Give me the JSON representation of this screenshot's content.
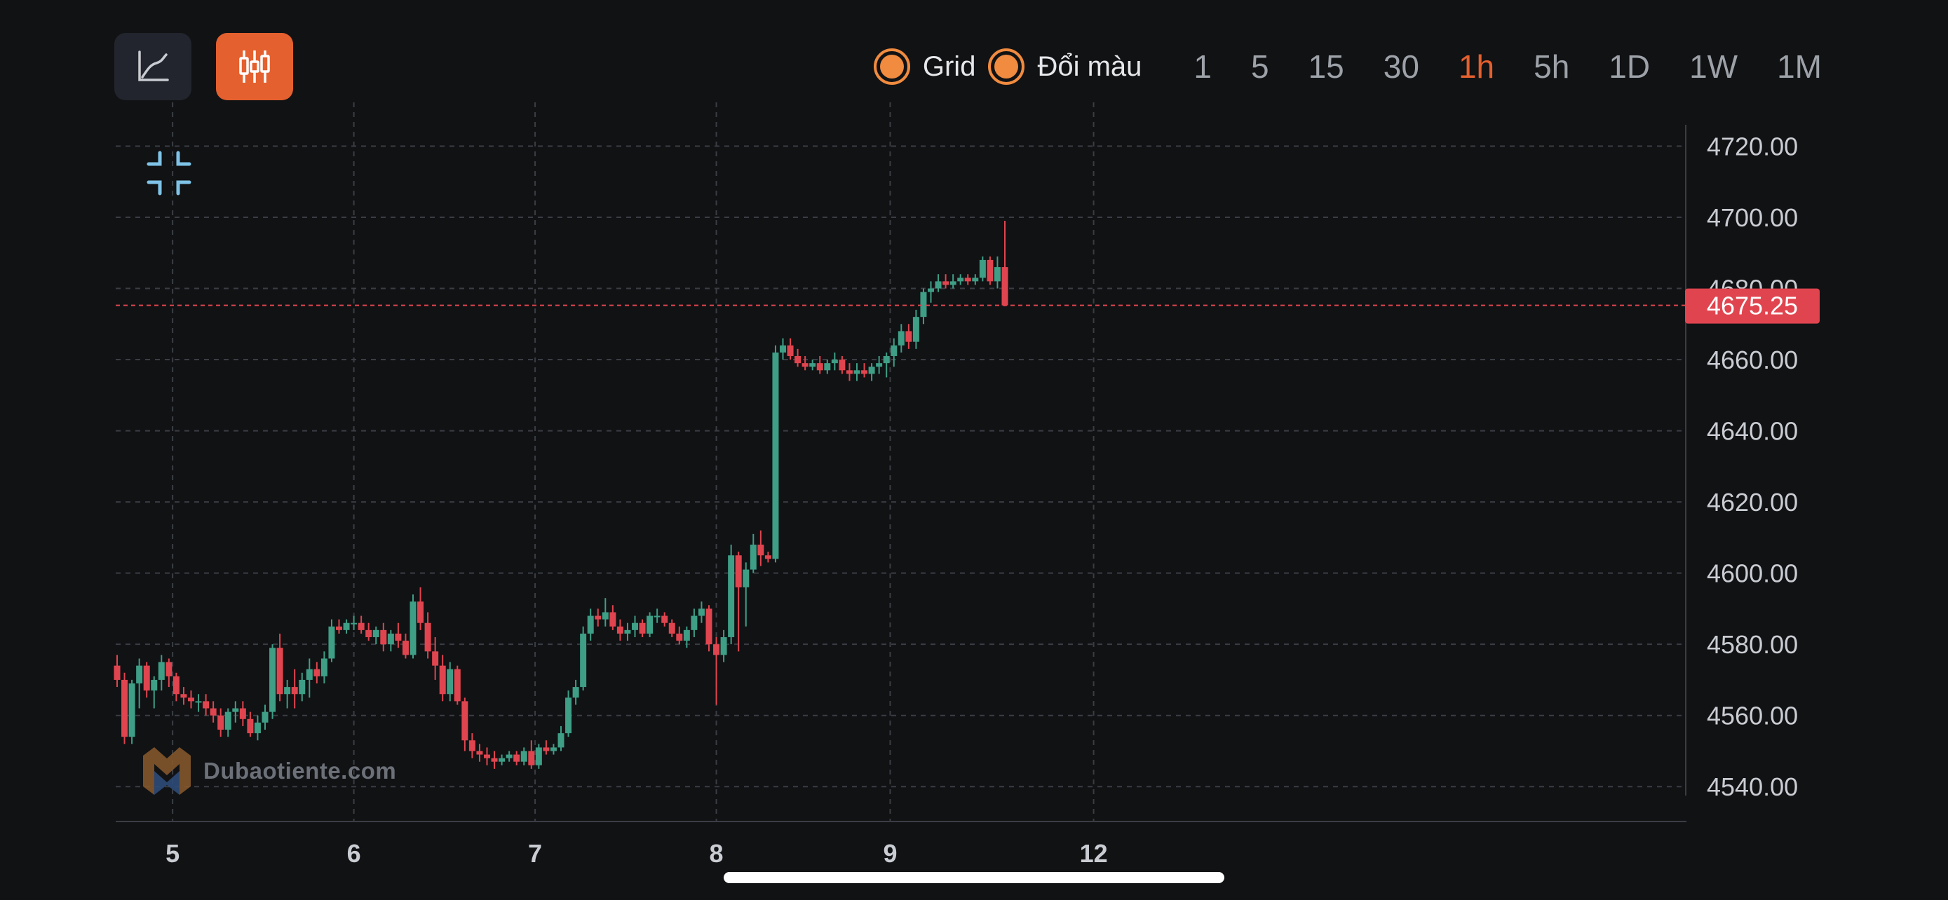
{
  "toolbar": {
    "line_mode_icon": "line-chart-icon",
    "candle_mode_icon": "candlestick-icon",
    "grid_label": "Grid",
    "color_label": "Đổi màu",
    "timeframes": [
      "1",
      "5",
      "15",
      "30",
      "1h",
      "5h",
      "1D",
      "1W",
      "1M"
    ],
    "active_timeframe": "1h"
  },
  "watermark": {
    "text": "Dubaotiente.com"
  },
  "colors": {
    "up": "#3e9e86",
    "down": "#e0454f",
    "accent": "#e4602e",
    "grid": "#3a3d44",
    "price_line": "#e0454f",
    "price_badge": "#e0454f",
    "background": "#111214"
  },
  "chart_data": {
    "type": "candlestick",
    "grid": true,
    "x_tick_labels": [
      {
        "label": "5",
        "index": 7.5
      },
      {
        "label": "6",
        "index": 32
      },
      {
        "label": "7",
        "index": 56.5
      },
      {
        "label": "8",
        "index": 81
      },
      {
        "label": "9",
        "index": 104.5
      },
      {
        "label": "12",
        "index": 132
      }
    ],
    "y_tick_labels": [
      "4720.00",
      "4700.00",
      "4680.00",
      "4660.00",
      "4640.00",
      "4620.00",
      "4600.00",
      "4580.00",
      "4560.00",
      "4540.00"
    ],
    "y_ticks": [
      4720,
      4700,
      4680,
      4660,
      4640,
      4620,
      4600,
      4580,
      4560,
      4540
    ],
    "ylim": [
      4536.5,
      4726
    ],
    "last_price": 4675.25,
    "last_price_label": "4675.25",
    "candles": [
      [
        4574,
        4577,
        4568,
        4570
      ],
      [
        4570,
        4572,
        4552,
        4554
      ],
      [
        4554,
        4570,
        4552,
        4569
      ],
      [
        4569,
        4576,
        4562,
        4574
      ],
      [
        4574,
        4575,
        4565,
        4567
      ],
      [
        4567,
        4571,
        4562,
        4570
      ],
      [
        4570,
        4577,
        4567,
        4575
      ],
      [
        4575,
        4576,
        4568,
        4571
      ],
      [
        4571,
        4572,
        4564,
        4566
      ],
      [
        4566,
        4568,
        4563,
        4565
      ],
      [
        4565,
        4567,
        4562,
        4564
      ],
      [
        4564,
        4566,
        4561,
        4564
      ],
      [
        4564,
        4566,
        4560,
        4562
      ],
      [
        4562,
        4564,
        4558,
        4560
      ],
      [
        4560,
        4562,
        4554,
        4556
      ],
      [
        4556,
        4562,
        4554,
        4561
      ],
      [
        4561,
        4564,
        4558,
        4562
      ],
      [
        4562,
        4564,
        4557,
        4559
      ],
      [
        4559,
        4561,
        4554,
        4555
      ],
      [
        4555,
        4560,
        4553,
        4558
      ],
      [
        4558,
        4563,
        4556,
        4561
      ],
      [
        4561,
        4580,
        4559,
        4579
      ],
      [
        4579,
        4583,
        4564,
        4566
      ],
      [
        4566,
        4570,
        4562,
        4568
      ],
      [
        4568,
        4573,
        4562,
        4566
      ],
      [
        4566,
        4572,
        4564,
        4570
      ],
      [
        4570,
        4576,
        4565,
        4573
      ],
      [
        4573,
        4575,
        4569,
        4571
      ],
      [
        4571,
        4578,
        4569,
        4576
      ],
      [
        4576,
        4587,
        4575,
        4585
      ],
      [
        4585,
        4587,
        4583,
        4584
      ],
      [
        4584,
        4587,
        4583,
        4586
      ],
      [
        4586,
        4588,
        4584,
        4586
      ],
      [
        4586,
        4588,
        4583,
        4584
      ],
      [
        4584,
        4586,
        4581,
        4582
      ],
      [
        4582,
        4585,
        4580,
        4584
      ],
      [
        4584,
        4586,
        4578,
        4580
      ],
      [
        4580,
        4584,
        4578,
        4583
      ],
      [
        4583,
        4586,
        4579,
        4581
      ],
      [
        4581,
        4583,
        4576,
        4577
      ],
      [
        4577,
        4594,
        4576,
        4592
      ],
      [
        4592,
        4596,
        4584,
        4586
      ],
      [
        4586,
        4589,
        4576,
        4578
      ],
      [
        4578,
        4582,
        4570,
        4574
      ],
      [
        4574,
        4577,
        4564,
        4566
      ],
      [
        4566,
        4575,
        4564,
        4573
      ],
      [
        4573,
        4574,
        4563,
        4564
      ],
      [
        4564,
        4565,
        4550,
        4553
      ],
      [
        4553,
        4555,
        4548,
        4550
      ],
      [
        4550,
        4552,
        4547,
        4549
      ],
      [
        4549,
        4551,
        4546,
        4548
      ],
      [
        4548,
        4550,
        4545,
        4547
      ],
      [
        4547,
        4549,
        4546,
        4548
      ],
      [
        4548,
        4550,
        4547,
        4549
      ],
      [
        4549,
        4550,
        4546,
        4547
      ],
      [
        4547,
        4551,
        4546,
        4550
      ],
      [
        4550,
        4553,
        4545,
        4546
      ],
      [
        4546,
        4552,
        4545,
        4551
      ],
      [
        4551,
        4553,
        4549,
        4550
      ],
      [
        4550,
        4552,
        4549,
        4551
      ],
      [
        4551,
        4557,
        4550,
        4555
      ],
      [
        4555,
        4567,
        4554,
        4565
      ],
      [
        4565,
        4570,
        4563,
        4568
      ],
      [
        4568,
        4585,
        4567,
        4583
      ],
      [
        4583,
        4590,
        4581,
        4588
      ],
      [
        4588,
        4590,
        4585,
        4587
      ],
      [
        4587,
        4593,
        4585,
        4589
      ],
      [
        4589,
        4591,
        4584,
        4585
      ],
      [
        4585,
        4587,
        4581,
        4583
      ],
      [
        4583,
        4586,
        4581,
        4584
      ],
      [
        4584,
        4588,
        4582,
        4586
      ],
      [
        4586,
        4587,
        4582,
        4583
      ],
      [
        4583,
        4589,
        4582,
        4588
      ],
      [
        4588,
        4590,
        4586,
        4588
      ],
      [
        4588,
        4589,
        4585,
        4586
      ],
      [
        4586,
        4587,
        4582,
        4583
      ],
      [
        4583,
        4585,
        4580,
        4581
      ],
      [
        4581,
        4585,
        4579,
        4584
      ],
      [
        4584,
        4590,
        4582,
        4588
      ],
      [
        4588,
        4592,
        4586,
        4590
      ],
      [
        4590,
        4591,
        4578,
        4580
      ],
      [
        4580,
        4582,
        4563,
        4577
      ],
      [
        4577,
        4584,
        4575,
        4582
      ],
      [
        4582,
        4608,
        4580,
        4605
      ],
      [
        4605,
        4606,
        4578,
        4596
      ],
      [
        4596,
        4603,
        4585,
        4601
      ],
      [
        4601,
        4611,
        4600,
        4608
      ],
      [
        4608,
        4612,
        4602,
        4605
      ],
      [
        4605,
        4606,
        4603,
        4604
      ],
      [
        4604,
        4664,
        4603,
        4662
      ],
      [
        4662,
        4666,
        4660,
        4664
      ],
      [
        4664,
        4666,
        4660,
        4661
      ],
      [
        4661,
        4663,
        4658,
        4659
      ],
      [
        4659,
        4661,
        4657,
        4658
      ],
      [
        4658,
        4660,
        4657,
        4659
      ],
      [
        4659,
        4661,
        4656,
        4657
      ],
      [
        4657,
        4660,
        4656,
        4659
      ],
      [
        4659,
        4662,
        4657,
        4660
      ],
      [
        4660,
        4661,
        4656,
        4657
      ],
      [
        4657,
        4659,
        4654,
        4656
      ],
      [
        4656,
        4659,
        4654,
        4657
      ],
      [
        4657,
        4659,
        4655,
        4656
      ],
      [
        4656,
        4659,
        4654,
        4658
      ],
      [
        4658,
        4661,
        4656,
        4659
      ],
      [
        4659,
        4662,
        4655,
        4661
      ],
      [
        4661,
        4666,
        4658,
        4664
      ],
      [
        4664,
        4670,
        4662,
        4668
      ],
      [
        4668,
        4670,
        4663,
        4665
      ],
      [
        4665,
        4674,
        4663,
        4672
      ],
      [
        4672,
        4680,
        4670,
        4679
      ],
      [
        4679,
        4682,
        4676,
        4680
      ],
      [
        4680,
        4684,
        4679,
        4682
      ],
      [
        4682,
        4684,
        4680,
        4681
      ],
      [
        4681,
        4684,
        4680,
        4682
      ],
      [
        4682,
        4684,
        4681,
        4683
      ],
      [
        4683,
        4684,
        4681,
        4682
      ],
      [
        4682,
        4684,
        4681,
        4683
      ],
      [
        4683,
        4689,
        4682,
        4688
      ],
      [
        4688,
        4689,
        4681,
        4682
      ],
      [
        4682,
        4689,
        4680,
        4686
      ],
      [
        4686,
        4699,
        4675,
        4675.25
      ]
    ]
  }
}
